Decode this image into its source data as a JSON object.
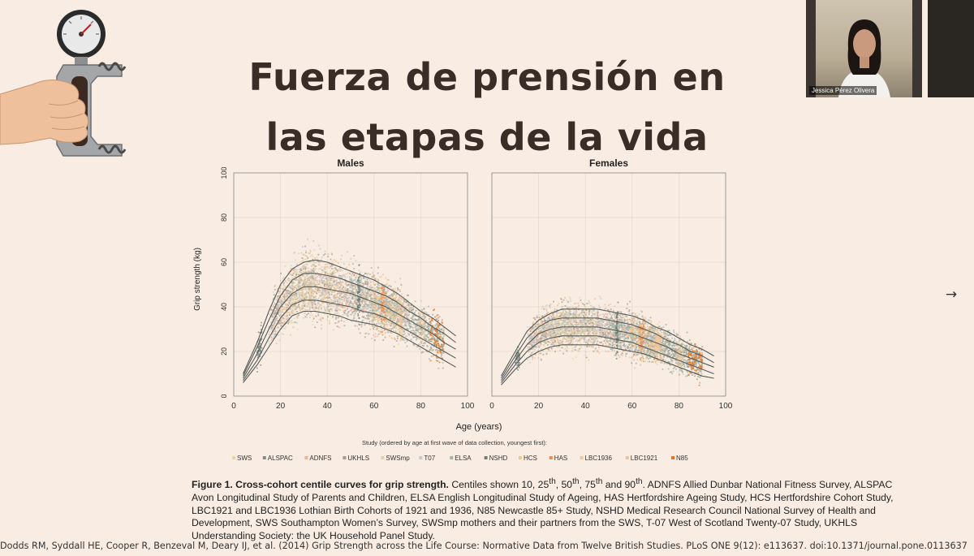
{
  "slide": {
    "title_line1": "Fuerza de prensión en",
    "title_line2": "las etapas de la vida"
  },
  "video": {
    "participant_name": "Jessica Pérez Olivera"
  },
  "figure": {
    "panels": [
      {
        "title": "Males"
      },
      {
        "title": "Females"
      }
    ],
    "ylabel": "Grip strength (kg)",
    "xlabel": "Age (years)",
    "legend_title": "Study (ordered by age at first wave of data collection, youngest first):",
    "legend": [
      {
        "label": "SWS",
        "color": "#e8d5a6"
      },
      {
        "label": "ALSPAC",
        "color": "#7d8f88"
      },
      {
        "label": "ADNFS",
        "color": "#f0b48f"
      },
      {
        "label": "UKHLS",
        "color": "#a59d92"
      },
      {
        "label": "SWSmp",
        "color": "#ddd4a2"
      },
      {
        "label": "T07",
        "color": "#c9c9c9"
      },
      {
        "label": "ELSA",
        "color": "#9fb5a8"
      },
      {
        "label": "NSHD",
        "color": "#6e7f78"
      },
      {
        "label": "HCS",
        "color": "#f2c98c"
      },
      {
        "label": "HAS",
        "color": "#f08d4a"
      },
      {
        "label": "LBC1936",
        "color": "#f5c59a"
      },
      {
        "label": "LBC1921",
        "color": "#eac69c"
      },
      {
        "label": "N85",
        "color": "#e8711e"
      }
    ]
  },
  "chart_data": [
    {
      "type": "line",
      "title": "Males",
      "xlabel": "Age (years)",
      "ylabel": "Grip strength (kg)",
      "xlim": [
        0,
        100
      ],
      "ylim": [
        0,
        100
      ],
      "xticks": [
        0,
        20,
        40,
        60,
        80,
        100
      ],
      "yticks": [
        0,
        20,
        40,
        60,
        80,
        100
      ],
      "grid": true,
      "x": [
        4,
        10,
        15,
        20,
        25,
        30,
        35,
        40,
        45,
        50,
        55,
        60,
        65,
        70,
        75,
        80,
        85,
        90,
        95
      ],
      "series": [
        {
          "name": "10th",
          "values": [
            6,
            14,
            22,
            30,
            36,
            38,
            38,
            37,
            36,
            34,
            33,
            32,
            30,
            28,
            25,
            22,
            19,
            16,
            13
          ]
        },
        {
          "name": "25th",
          "values": [
            7,
            16,
            26,
            35,
            41,
            43,
            43,
            42,
            41,
            40,
            38,
            37,
            35,
            32,
            29,
            26,
            23,
            20,
            17
          ]
        },
        {
          "name": "50th",
          "values": [
            8,
            19,
            30,
            40,
            46,
            49,
            49,
            48,
            47,
            46,
            44,
            42,
            40,
            37,
            34,
            31,
            28,
            24,
            21
          ]
        },
        {
          "name": "75th",
          "values": [
            9,
            22,
            34,
            45,
            52,
            55,
            55,
            54,
            53,
            51,
            49,
            47,
            45,
            42,
            38,
            35,
            31,
            28,
            24
          ]
        },
        {
          "name": "90th",
          "values": [
            10,
            24,
            38,
            50,
            57,
            60,
            61,
            60,
            58,
            56,
            54,
            52,
            49,
            46,
            42,
            38,
            35,
            31,
            27
          ]
        }
      ]
    },
    {
      "type": "line",
      "title": "Females",
      "xlabel": "Age (years)",
      "ylabel": "Grip strength (kg)",
      "xlim": [
        0,
        100
      ],
      "ylim": [
        0,
        100
      ],
      "xticks": [
        0,
        20,
        40,
        60,
        80,
        100
      ],
      "yticks": [
        0,
        20,
        40,
        60,
        80,
        100
      ],
      "grid": true,
      "x": [
        4,
        10,
        15,
        20,
        25,
        30,
        35,
        40,
        45,
        50,
        55,
        60,
        65,
        70,
        75,
        80,
        85,
        90,
        95
      ],
      "series": [
        {
          "name": "10th",
          "values": [
            5,
            12,
            17,
            20,
            22,
            23,
            23,
            23,
            23,
            22,
            21,
            20,
            19,
            17,
            15,
            13,
            11,
            9,
            8
          ]
        },
        {
          "name": "25th",
          "values": [
            6,
            14,
            20,
            24,
            26,
            27,
            27,
            27,
            27,
            26,
            25,
            24,
            22,
            20,
            18,
            16,
            14,
            12,
            10
          ]
        },
        {
          "name": "50th",
          "values": [
            7,
            16,
            23,
            28,
            30,
            31,
            31,
            31,
            31,
            30,
            29,
            28,
            26,
            24,
            22,
            19,
            17,
            15,
            13
          ]
        },
        {
          "name": "75th",
          "values": [
            8,
            18,
            26,
            31,
            34,
            35,
            35,
            35,
            35,
            34,
            33,
            32,
            30,
            28,
            25,
            23,
            20,
            18,
            15
          ]
        },
        {
          "name": "90th",
          "values": [
            9,
            20,
            29,
            34,
            37,
            39,
            39,
            39,
            39,
            38,
            37,
            36,
            34,
            31,
            29,
            26,
            23,
            21,
            18
          ]
        }
      ]
    }
  ],
  "caption": {
    "label": "Figure 1. Cross-cohort centile curves for grip strength.",
    "text_before": " Centiles shown 10, 25",
    "sup1": "th",
    "text_mid1": ", 50",
    "sup2": "th",
    "text_mid2": ", 75",
    "sup3": "th",
    "text_mid3": " and 90",
    "sup4": "th",
    "text_after": ". ADNFS Allied Dunbar National Fitness Survey, ALSPAC Avon Longitudinal Study of Parents and Children, ELSA English Longitudinal Study of Ageing, HAS Hertfordshire Ageing Study, HCS Hertfordshire Cohort Study, LBC1921 and LBC1936 Lothian Birth Cohorts of 1921 and 1936, N85 Newcastle 85+ Study, NSHD Medical Research Council National Survey of Health and Development, SWS Southampton Women’s Survey, SWSmp mothers and their partners from the SWS, T-07 West of Scotland Twenty-07 Study, UKHLS Understanding Society: the UK Household Panel Study."
  },
  "citation": "Dodds RM, Syddall HE, Cooper R, Benzeval M, Deary IJ, et al. (2014) Grip Strength across the Life Course: Normative Data from Twelve British Studies. PLoS ONE 9(12): e113637. doi:10.1371/journal.pone.0113637",
  "icons": {
    "next": "arrow-right-icon",
    "tool": "hand-dynamometer-icon"
  },
  "colors": {
    "background": "#f9ede3",
    "title": "#3a2c26",
    "curve": "#555b58"
  }
}
